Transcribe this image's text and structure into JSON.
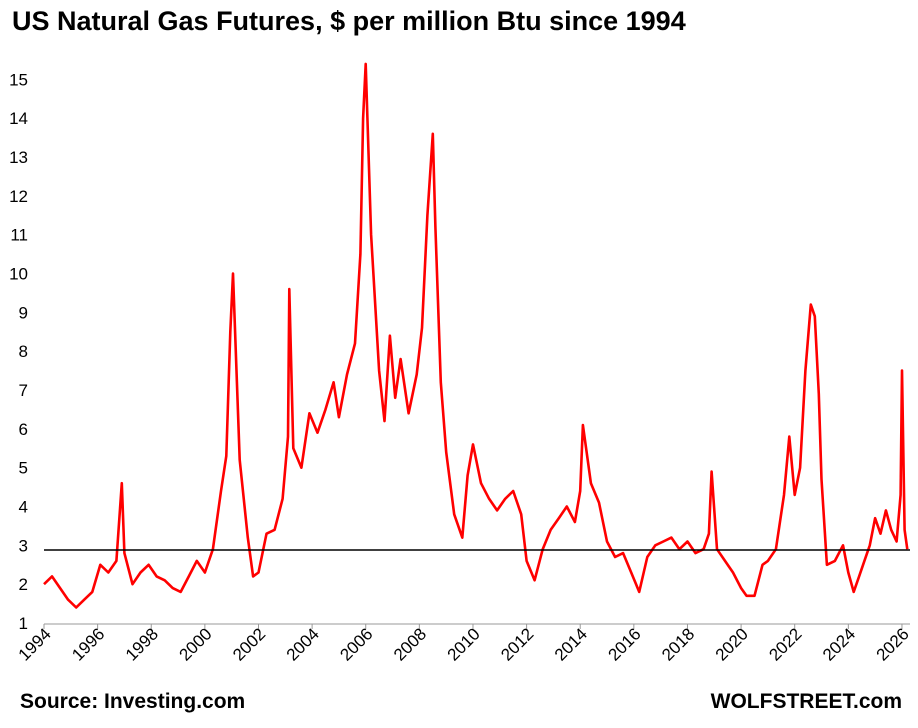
{
  "title": "US Natural Gas Futures, $ per million Btu since 1994",
  "source": "Source: Investing.com",
  "credit": "WOLFSTREET.com",
  "colors": {
    "series": "#ff0000",
    "reference": "#000000",
    "axis": "#999999"
  },
  "chart_data": {
    "type": "line",
    "title": "US Natural Gas Futures, $ per million Btu since 1994",
    "xlabel": "",
    "ylabel": "",
    "xlim": [
      1994,
      2026.3
    ],
    "ylim": [
      1,
      15.5
    ],
    "x_ticks": [
      "1994",
      "1996",
      "1998",
      "2000",
      "2002",
      "2004",
      "2006",
      "2008",
      "2010",
      "2012",
      "2014",
      "2016",
      "2018",
      "2020",
      "2022",
      "2024",
      "2026"
    ],
    "y_ticks": [
      1,
      2,
      3,
      4,
      5,
      6,
      7,
      8,
      9,
      10,
      11,
      12,
      13,
      14,
      15
    ],
    "grid": false,
    "legend": "none",
    "reference_line": {
      "y": 2.88
    },
    "series": [
      {
        "x": [
          1994.0,
          1994.3,
          1994.6,
          1994.9,
          1995.2,
          1995.5,
          1995.8,
          1996.1,
          1996.4,
          1996.7,
          1996.9,
          1997.0,
          1997.3,
          1997.6,
          1997.9,
          1998.2,
          1998.5,
          1998.8,
          1999.1,
          1999.4,
          1999.7,
          2000.0,
          2000.3,
          2000.6,
          2000.8,
          2000.95,
          2001.05,
          2001.3,
          2001.6,
          2001.8,
          2002.0,
          2002.3,
          2002.6,
          2002.9,
          2003.1,
          2003.15,
          2003.3,
          2003.6,
          2003.9,
          2004.2,
          2004.5,
          2004.8,
          2005.0,
          2005.3,
          2005.6,
          2005.8,
          2005.9,
          2006.0,
          2006.2,
          2006.5,
          2006.7,
          2006.9,
          2007.1,
          2007.3,
          2007.6,
          2007.9,
          2008.1,
          2008.3,
          2008.5,
          2008.6,
          2008.8,
          2009.0,
          2009.3,
          2009.6,
          2009.8,
          2010.0,
          2010.3,
          2010.6,
          2010.9,
          2011.2,
          2011.5,
          2011.8,
          2012.0,
          2012.3,
          2012.6,
          2012.9,
          2013.2,
          2013.5,
          2013.8,
          2014.0,
          2014.1,
          2014.4,
          2014.7,
          2015.0,
          2015.3,
          2015.6,
          2015.9,
          2016.2,
          2016.5,
          2016.8,
          2017.1,
          2017.4,
          2017.7,
          2018.0,
          2018.3,
          2018.6,
          2018.8,
          2018.9,
          2019.1,
          2019.4,
          2019.7,
          2020.0,
          2020.2,
          2020.5,
          2020.8,
          2021.0,
          2021.3,
          2021.6,
          2021.8,
          2022.0,
          2022.2,
          2022.4,
          2022.6,
          2022.75,
          2022.9,
          2023.0,
          2023.2,
          2023.5,
          2023.8,
          2024.0,
          2024.2,
          2024.4,
          2024.6,
          2024.8,
          2025.0,
          2025.2,
          2025.4,
          2025.6,
          2025.8,
          2025.95,
          2026.0,
          2026.1,
          2026.2
        ],
        "y": [
          2.0,
          2.2,
          1.9,
          1.6,
          1.4,
          1.6,
          1.8,
          2.5,
          2.3,
          2.6,
          4.6,
          2.8,
          2.0,
          2.3,
          2.5,
          2.2,
          2.1,
          1.9,
          1.8,
          2.2,
          2.6,
          2.3,
          2.9,
          4.4,
          5.3,
          8.5,
          10.0,
          5.2,
          3.2,
          2.2,
          2.3,
          3.3,
          3.4,
          4.2,
          5.8,
          9.6,
          5.5,
          5.0,
          6.4,
          5.9,
          6.5,
          7.2,
          6.3,
          7.4,
          8.2,
          10.5,
          14.0,
          15.4,
          11.0,
          7.5,
          6.2,
          8.4,
          6.8,
          7.8,
          6.4,
          7.4,
          8.6,
          11.5,
          13.6,
          11.2,
          7.2,
          5.4,
          3.8,
          3.2,
          4.8,
          5.6,
          4.6,
          4.2,
          3.9,
          4.2,
          4.4,
          3.8,
          2.6,
          2.1,
          2.9,
          3.4,
          3.7,
          4.0,
          3.6,
          4.4,
          6.1,
          4.6,
          4.1,
          3.1,
          2.7,
          2.8,
          2.3,
          1.8,
          2.7,
          3.0,
          3.1,
          3.2,
          2.9,
          3.1,
          2.8,
          2.9,
          3.3,
          4.9,
          2.9,
          2.6,
          2.3,
          1.9,
          1.7,
          1.7,
          2.5,
          2.6,
          2.9,
          4.3,
          5.8,
          4.3,
          5.0,
          7.5,
          9.2,
          8.9,
          6.9,
          4.7,
          2.5,
          2.6,
          3.0,
          2.3,
          1.8,
          2.2,
          2.6,
          3.0,
          3.7,
          3.3,
          3.9,
          3.4,
          3.1,
          4.3,
          7.5,
          3.4,
          2.9
        ]
      }
    ]
  }
}
